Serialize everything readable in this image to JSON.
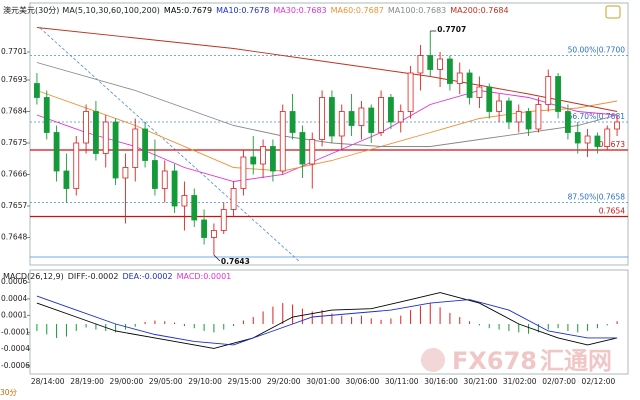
{
  "chart_data": {
    "type": "candlestick",
    "title": "澳元美元(30分)",
    "ma_title": "MA(5,10,30,60,100,200)",
    "ylim": [
      0.7641,
      0.7713
    ],
    "yticks": [
      0.7701,
      0.7693,
      0.7684,
      0.7675,
      0.7666,
      0.7657,
      0.7648
    ],
    "candles": {
      "open": [
        0.7692,
        0.7688,
        0.7678,
        0.7667,
        0.7662,
        0.7675,
        0.7684,
        0.7672,
        0.7681,
        0.7665,
        0.7668,
        0.7679,
        0.767,
        0.7662,
        0.7667,
        0.7657,
        0.766,
        0.7653,
        0.7648,
        0.765,
        0.7656,
        0.7662,
        0.7671,
        0.7669,
        0.7674,
        0.7667,
        0.7684,
        0.7678,
        0.7669,
        0.7676,
        0.7688,
        0.7677,
        0.7684,
        0.768,
        0.7685,
        0.7678,
        0.7688,
        0.7681,
        0.7684,
        0.7695,
        0.77,
        0.7696,
        0.7699,
        0.7692,
        0.7695,
        0.7688,
        0.7691,
        0.7684,
        0.7687,
        0.7681,
        0.7684,
        0.7679,
        0.7686,
        0.7694,
        0.7684,
        0.7678,
        0.7675,
        0.7677,
        0.7674,
        0.7679
      ],
      "high": [
        0.7695,
        0.769,
        0.768,
        0.7672,
        0.7677,
        0.7686,
        0.7687,
        0.7683,
        0.7682,
        0.7672,
        0.7682,
        0.7681,
        0.7676,
        0.767,
        0.7669,
        0.7664,
        0.7662,
        0.7656,
        0.7652,
        0.7658,
        0.7664,
        0.7673,
        0.7677,
        0.7676,
        0.7676,
        0.7686,
        0.7689,
        0.768,
        0.7678,
        0.769,
        0.769,
        0.7686,
        0.7689,
        0.7687,
        0.7686,
        0.769,
        0.7689,
        0.7686,
        0.7697,
        0.7703,
        0.7707,
        0.7701,
        0.77,
        0.7698,
        0.7696,
        0.7694,
        0.7692,
        0.7689,
        0.7688,
        0.7686,
        0.7685,
        0.7688,
        0.7696,
        0.7695,
        0.7686,
        0.7681,
        0.7679,
        0.7678,
        0.768,
        0.7683
      ],
      "low": [
        0.7686,
        0.7676,
        0.7664,
        0.7658,
        0.766,
        0.7672,
        0.767,
        0.7668,
        0.7663,
        0.7652,
        0.7664,
        0.7668,
        0.766,
        0.7658,
        0.7655,
        0.765,
        0.7651,
        0.7646,
        0.7643,
        0.7649,
        0.7654,
        0.766,
        0.7666,
        0.7665,
        0.7664,
        0.7666,
        0.7676,
        0.7665,
        0.7662,
        0.7674,
        0.7675,
        0.7673,
        0.7677,
        0.7676,
        0.7675,
        0.7677,
        0.7679,
        0.7678,
        0.7682,
        0.769,
        0.7694,
        0.7691,
        0.769,
        0.7689,
        0.7686,
        0.7685,
        0.7682,
        0.7681,
        0.7679,
        0.7678,
        0.7677,
        0.7678,
        0.7684,
        0.7682,
        0.7676,
        0.7672,
        0.7671,
        0.7672,
        0.7673,
        0.7677
      ],
      "close": [
        0.7688,
        0.7678,
        0.7667,
        0.7662,
        0.7675,
        0.7684,
        0.7672,
        0.7681,
        0.7665,
        0.7668,
        0.7679,
        0.767,
        0.7662,
        0.7667,
        0.7657,
        0.766,
        0.7653,
        0.7648,
        0.765,
        0.7656,
        0.7662,
        0.7671,
        0.7669,
        0.7674,
        0.7667,
        0.7684,
        0.7678,
        0.7669,
        0.7676,
        0.7688,
        0.7677,
        0.7684,
        0.768,
        0.7685,
        0.7678,
        0.7688,
        0.7681,
        0.7684,
        0.7695,
        0.77,
        0.7696,
        0.7699,
        0.7692,
        0.7695,
        0.7688,
        0.7691,
        0.7684,
        0.7687,
        0.7681,
        0.7684,
        0.7679,
        0.7686,
        0.7694,
        0.7684,
        0.7678,
        0.7675,
        0.7677,
        0.7674,
        0.7679,
        0.7681
      ]
    },
    "up_color": "#e02020",
    "down_color": "#159a3a",
    "moving_averages": [
      {
        "name": "MA5",
        "value": 0.7679,
        "color": "#000000"
      },
      {
        "name": "MA10",
        "value": 0.7678,
        "color": "#1a2fd0"
      },
      {
        "name": "MA30",
        "value": 0.7683,
        "color": "#e030d8",
        "x": [
          0,
          5,
          10,
          15,
          20,
          25,
          30,
          35,
          40,
          45,
          50,
          55,
          59
        ],
        "values": [
          0.7683,
          0.7678,
          0.7674,
          0.7668,
          0.7664,
          0.7666,
          0.7672,
          0.7678,
          0.7686,
          0.769,
          0.7688,
          0.7684,
          0.7683
        ]
      },
      {
        "name": "MA60",
        "value": 0.7687,
        "color": "#f09030",
        "x": [
          0,
          10,
          20,
          25,
          30,
          35,
          40,
          45,
          50,
          55,
          59
        ],
        "values": [
          0.769,
          0.768,
          0.7668,
          0.7667,
          0.767,
          0.7674,
          0.7678,
          0.7682,
          0.7684,
          0.7685,
          0.7687
        ]
      },
      {
        "name": "MA100",
        "value": 0.7683,
        "color": "#888888",
        "x": [
          0,
          10,
          20,
          25,
          30,
          35,
          40,
          45,
          50,
          55,
          59
        ],
        "values": [
          0.7698,
          0.769,
          0.768,
          0.7677,
          0.7675,
          0.7674,
          0.7674,
          0.7676,
          0.7678,
          0.768,
          0.7683
        ]
      },
      {
        "name": "MA200",
        "value": 0.7684,
        "color": "#c03020",
        "x": [
          0,
          10,
          20,
          30,
          40,
          50,
          59
        ],
        "values": [
          0.7708,
          0.7705,
          0.7702,
          0.7698,
          0.7694,
          0.7689,
          0.7684
        ]
      }
    ],
    "fib_levels": [
      {
        "name": "50.00%",
        "value": 0.77,
        "label": "0.7700"
      },
      {
        "name": "66.70%",
        "value": 0.7681
      },
      {
        "name": "87.50%",
        "value": 0.7658
      }
    ],
    "support_lines": [
      0.7673,
      0.7654
    ],
    "high": 0.7707,
    "low": 0.7643,
    "x_labels": [
      "28/14:00",
      "28/19:00",
      "29/00:00",
      "29/05:00",
      "29/10:00",
      "29/15:00",
      "29/20:00",
      "30/01:00",
      "30/06:00",
      "30/11:00",
      "30/16:00",
      "30/21:00",
      "31/02:00",
      "02/07:00",
      "02/12:00"
    ],
    "macd": {
      "title": "MACD(26,12,9)",
      "diff_label": "DIFF:-0.0002",
      "dea_label": "DEA:-0.0002",
      "macd_label": "MACD:0.0001",
      "ylim": [
        -0.00066,
        0.00066
      ],
      "yticks": [
        {
          "value": 0.0006,
          "label": "0.0006"
        },
        {
          "value": 0.00036,
          "label": "0.0004"
        },
        {
          "value": 0.00012,
          "label": "0.0001"
        },
        {
          "value": -0.00012,
          "label": "-0.0001"
        },
        {
          "value": -0.00036,
          "label": "-0.0004"
        },
        {
          "value": -0.0006,
          "label": "-0.0006"
        }
      ],
      "histogram": [
        -0.0001,
        -0.00015,
        -0.0002,
        -0.00018,
        -0.0001,
        -5e-05,
        -8e-05,
        -0.0001,
        -0.00012,
        -8e-05,
        -4e-05,
        3e-05,
        5e-05,
        4e-05,
        2e-05,
        -3e-05,
        -6e-05,
        -0.0001,
        -0.00012,
        -8e-05,
        -3e-05,
        5e-05,
        0.0001,
        0.00018,
        0.00025,
        0.0003,
        0.00028,
        0.00022,
        0.00018,
        0.0002,
        0.00015,
        0.00012,
        0.0001,
        0.00012,
        8e-05,
        6e-05,
        8e-05,
        0.00012,
        0.0002,
        0.00026,
        0.0003,
        0.00024,
        0.00016,
        0.0001,
        4e-05,
        -2e-05,
        -6e-05,
        -8e-05,
        -0.0001,
        -0.00012,
        -0.00014,
        -0.00012,
        -8e-05,
        -6e-05,
        -0.0001,
        -0.00012,
        -0.0001,
        -6e-05,
        -2e-05,
        4e-05
      ],
      "series": [
        {
          "name": "DIFF",
          "color": "#000000",
          "x": [
            0,
            4,
            8,
            12,
            16,
            18,
            22,
            26,
            30,
            34,
            38,
            41,
            45,
            49,
            53,
            56,
            59
          ],
          "values": [
            0.0003,
            0.0001,
            -0.0001,
            -0.0002,
            -0.0003,
            -0.00035,
            -0.0002,
            0.0001,
            0.0002,
            0.00022,
            0.00035,
            0.00045,
            0.0003,
            0,
            -0.0002,
            -0.0003,
            -0.0002
          ]
        },
        {
          "name": "DEA",
          "color": "#1a2fd0",
          "x": [
            0,
            4,
            8,
            12,
            16,
            20,
            24,
            28,
            32,
            36,
            40,
            44,
            48,
            52,
            56,
            59
          ],
          "values": [
            0.0004,
            0.0002,
            0,
            -0.00015,
            -0.00025,
            -0.0003,
            -0.0001,
            0.0001,
            0.00015,
            0.0002,
            0.0003,
            0.00035,
            0.0002,
            -0.0001,
            -0.0002,
            -0.0002
          ]
        }
      ]
    },
    "period_tab": "30分",
    "watermark": [
      "FX678",
      "汇通网"
    ]
  }
}
